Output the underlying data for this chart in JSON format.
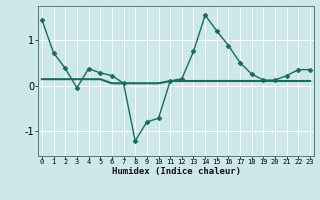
{
  "title": "",
  "xlabel": "Humidex (Indice chaleur)",
  "bg_color": "#cce8ea",
  "line_color": "#1a6b5e",
  "grid_color": "#ffffff",
  "x_main": [
    0,
    1,
    2,
    3,
    4,
    5,
    6,
    7,
    8,
    9,
    10,
    11,
    12,
    13,
    14,
    15,
    16,
    17,
    18,
    19,
    20,
    21,
    22,
    23
  ],
  "y_main": [
    1.45,
    0.72,
    0.38,
    -0.05,
    0.37,
    0.28,
    0.22,
    0.05,
    -1.22,
    -0.8,
    -0.72,
    0.1,
    0.15,
    0.75,
    1.55,
    1.2,
    0.88,
    0.5,
    0.25,
    0.12,
    0.12,
    0.22,
    0.35,
    0.35
  ],
  "x_flat": [
    0,
    1,
    2,
    3,
    4,
    5,
    6,
    7,
    8,
    9,
    10,
    11,
    12,
    13,
    14,
    15,
    16,
    17,
    18,
    19,
    20,
    21,
    22,
    23
  ],
  "y_flat": [
    0.14,
    0.14,
    0.14,
    0.14,
    0.14,
    0.14,
    0.05,
    0.05,
    0.05,
    0.05,
    0.05,
    0.1,
    0.1,
    0.1,
    0.1,
    0.1,
    0.1,
    0.1,
    0.1,
    0.1,
    0.1,
    0.1,
    0.1,
    0.1
  ],
  "yticks": [
    -1,
    0,
    1
  ],
  "xtick_labels": [
    "0",
    "1",
    "2",
    "3",
    "4",
    "5",
    "6",
    "7",
    "8",
    "9",
    "10",
    "11",
    "12",
    "13",
    "14",
    "15",
    "16",
    "17",
    "18",
    "19",
    "20",
    "21",
    "22",
    "23"
  ],
  "ylim": [
    -1.55,
    1.75
  ],
  "xlim": [
    -0.3,
    23.3
  ]
}
